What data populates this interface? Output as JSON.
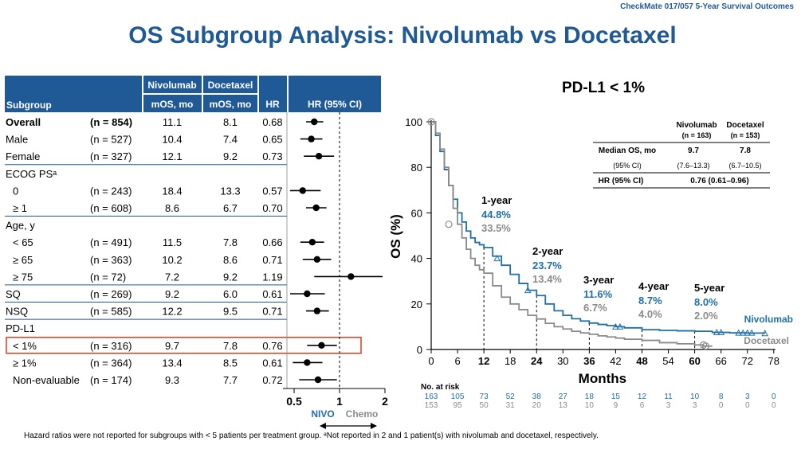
{
  "header": {
    "top_label": "CheckMate 017/057 5-Year Survival Outcomes",
    "title": "OS Subgroup Analysis: Nivolumab vs Docetaxel"
  },
  "footnote": "Hazard ratios were not reported for subgroups with < 5 patients per treatment group. ᵃNot reported in 2 and 1 patient(s) with nivolumab and docetaxel, respectively.",
  "colors": {
    "navy": "#1f5a96",
    "nivo": "#1f6fa8",
    "chemo": "#8a8a8a",
    "highlight": "#e0452c"
  },
  "forest": {
    "col_headers": {
      "subgroup": "Subgroup",
      "nivo_top": "Nivolumab",
      "nivo_bottom": "mOS, mo",
      "doce_top": "Docetaxel",
      "doce_bottom": "mOS, mo",
      "hr": "HR",
      "ci": "HR (95% CI)"
    },
    "rows": [
      {
        "label": "Overall",
        "n": "(n = 854)",
        "nivo": "11.1",
        "doce": "8.1",
        "hr": "0.68",
        "hr_val": 0.68,
        "lo": 0.6,
        "hi": 0.78,
        "bold": true
      },
      {
        "label": "Male",
        "n": "(n = 527)",
        "nivo": "10.4",
        "doce": "7.4",
        "hr": "0.65",
        "hr_val": 0.65,
        "lo": 0.55,
        "hi": 0.77
      },
      {
        "label": "Female",
        "n": "(n = 327)",
        "nivo": "12.1",
        "doce": "9.2",
        "hr": "0.73",
        "hr_val": 0.73,
        "lo": 0.58,
        "hi": 0.92
      },
      {
        "label": "ECOG PSᵃ",
        "section": true
      },
      {
        "label": "0",
        "indent": true,
        "n": "(n = 243)",
        "nivo": "18.4",
        "doce": "13.3",
        "hr": "0.57",
        "hr_val": 0.57,
        "lo": 0.43,
        "hi": 0.75
      },
      {
        "label": "≥ 1",
        "indent": true,
        "n": "(n = 608)",
        "nivo": "8.6",
        "doce": "6.7",
        "hr": "0.70",
        "hr_val": 0.7,
        "lo": 0.6,
        "hi": 0.82
      },
      {
        "label": "Age, y",
        "section": true
      },
      {
        "label": "< 65",
        "indent": true,
        "n": "(n = 491)",
        "nivo": "11.5",
        "doce": "7.8",
        "hr": "0.66",
        "hr_val": 0.66,
        "lo": 0.55,
        "hi": 0.79
      },
      {
        "label": "≥ 65",
        "indent": true,
        "n": "(n = 363)",
        "nivo": "10.2",
        "doce": "8.6",
        "hr": "0.71",
        "hr_val": 0.71,
        "lo": 0.57,
        "hi": 0.88
      },
      {
        "label": "≥ 75",
        "indent": true,
        "n": "(n = 72)",
        "nivo": "7.2",
        "doce": "9.2",
        "hr": "1.19",
        "hr_val": 1.19,
        "lo": 0.68,
        "hi": 2.08
      },
      {
        "label": "SQ",
        "n": "(n = 269)",
        "nivo": "9.2",
        "doce": "6.0",
        "hr": "0.61",
        "hr_val": 0.61,
        "lo": 0.47,
        "hi": 0.8
      },
      {
        "label": "NSQ",
        "n": "(n = 585)",
        "nivo": "12.2",
        "doce": "9.5",
        "hr": "0.71",
        "hr_val": 0.71,
        "lo": 0.6,
        "hi": 0.85
      },
      {
        "label": "PD-L1",
        "section": true
      },
      {
        "label": "< 1%",
        "indent": true,
        "n": "(n = 316)",
        "nivo": "9.7",
        "doce": "7.8",
        "hr": "0.76",
        "hr_val": 0.76,
        "lo": 0.61,
        "hi": 0.96,
        "highlight": true
      },
      {
        "label": "≥ 1%",
        "indent": true,
        "n": "(n = 364)",
        "nivo": "13.4",
        "doce": "8.5",
        "hr": "0.61",
        "hr_val": 0.61,
        "lo": 0.49,
        "hi": 0.77
      },
      {
        "label": "Non-evaluable",
        "indent": true,
        "n": "(n = 174)",
        "nivo": "9.3",
        "doce": "7.7",
        "hr": "0.72",
        "hr_val": 0.72,
        "lo": 0.54,
        "hi": 0.96
      }
    ],
    "axis_ticks": [
      "0.5",
      "1",
      "2"
    ],
    "nivo_label": "NIVO",
    "chemo_label": "Chemo"
  },
  "chart_data": [
    {
      "type": "scatter",
      "title": "HR (95% CI)",
      "x_scale": "log",
      "xlim": [
        0.38,
        2.08
      ],
      "x_ticks": [
        0.5,
        1,
        2
      ],
      "reference_line": 1,
      "series": [
        {
          "categories": [
            "Overall",
            "Male",
            "Female",
            "ECOG PS 0",
            "ECOG PS ≥ 1",
            "Age < 65",
            "Age ≥ 65",
            "Age ≥ 75",
            "SQ",
            "NSQ",
            "PD-L1 < 1%",
            "PD-L1 ≥ 1%",
            "PD-L1 Non-evaluable"
          ],
          "values": [
            0.68,
            0.65,
            0.73,
            0.57,
            0.7,
            0.66,
            0.71,
            1.19,
            0.61,
            0.71,
            0.76,
            0.61,
            0.72
          ]
        }
      ]
    },
    {
      "type": "line",
      "title": "PD-L1 < 1%",
      "xlabel": "Months",
      "ylabel": "OS (%)",
      "xlim": [
        0,
        78
      ],
      "ylim": [
        0,
        100
      ],
      "x_ticks": [
        0,
        6,
        12,
        18,
        24,
        30,
        36,
        42,
        48,
        54,
        60,
        66,
        72,
        78
      ],
      "x_ticks_bold": [
        12,
        24,
        36,
        48,
        60
      ],
      "y_ticks": [
        0,
        20,
        40,
        60,
        80,
        100
      ],
      "series": [
        {
          "name": "Nivolumab",
          "color": "#1f6fa8",
          "x": [
            0,
            1,
            2,
            3,
            4,
            5,
            6,
            7,
            8,
            9,
            10,
            11,
            12,
            14,
            16,
            18,
            20,
            22,
            24,
            26,
            28,
            30,
            32,
            34,
            36,
            38,
            40,
            42,
            44,
            48,
            52,
            56,
            60,
            64,
            68,
            72,
            76
          ],
          "y": [
            100,
            94,
            87,
            79,
            72,
            66,
            60,
            56,
            52,
            49,
            47,
            46,
            44.8,
            41,
            37,
            33,
            29,
            26,
            23.7,
            20,
            17,
            15,
            13.5,
            12.5,
            11.6,
            11,
            10.5,
            10,
            9.5,
            8.7,
            8.4,
            8.2,
            8.0,
            7.5,
            7.3,
            7.2,
            7.1
          ]
        },
        {
          "name": "Docetaxel",
          "color": "#8a8a8a",
          "x": [
            0,
            1,
            2,
            3,
            4,
            5,
            6,
            7,
            8,
            9,
            10,
            11,
            12,
            14,
            16,
            18,
            20,
            22,
            24,
            26,
            28,
            30,
            32,
            34,
            36,
            38,
            40,
            42,
            44,
            48,
            52,
            56,
            60,
            62,
            64
          ],
          "y": [
            100,
            95,
            88,
            80,
            72,
            62,
            55,
            49,
            44,
            40,
            37,
            35,
            33.5,
            28,
            23,
            20,
            17.5,
            15,
            13.4,
            11.5,
            10,
            9,
            8,
            7.3,
            6.7,
            6,
            5.5,
            5,
            4.5,
            4.0,
            3,
            2.5,
            2.0,
            1.5,
            1.5
          ]
        }
      ],
      "annotations": [
        {
          "label": "1-year",
          "nivo": "44.8%",
          "chemo": "33.5%",
          "month": 12
        },
        {
          "label": "2-year",
          "nivo": "23.7%",
          "chemo": "13.4%",
          "month": 24
        },
        {
          "label": "3-year",
          "nivo": "11.6%",
          "chemo": "6.7%",
          "month": 36
        },
        {
          "label": "4-year",
          "nivo": "8.7%",
          "chemo": "4.0%",
          "month": 48
        },
        {
          "label": "5-year",
          "nivo": "8.0%",
          "chemo": "2.0%",
          "month": 60
        }
      ],
      "series_labels": {
        "nivo": "Nivolumab",
        "chemo": "Docetaxel"
      },
      "stats_table": {
        "headers": [
          "",
          "Nivolumab\n(n = 163)",
          "Docetaxel\n(n = 153)"
        ],
        "rows": [
          [
            "Median OS, mo",
            "9.7",
            "7.8"
          ],
          [
            "(95% CI)",
            "(7.6–13.3)",
            "(6.7–10.5)"
          ],
          [
            "HR (95% CI)",
            "0.76 (0.61–0.96)",
            ""
          ]
        ]
      },
      "at_risk": {
        "label": "No. at risk",
        "nivo": [
          "163",
          "105",
          "73",
          "52",
          "38",
          "27",
          "18",
          "15",
          "12",
          "11",
          "10",
          "8",
          "3",
          "0"
        ],
        "chemo": [
          "153",
          "95",
          "50",
          "31",
          "20",
          "13",
          "10",
          "9",
          "6",
          "3",
          "3",
          "0",
          "0",
          "0"
        ]
      }
    }
  ]
}
